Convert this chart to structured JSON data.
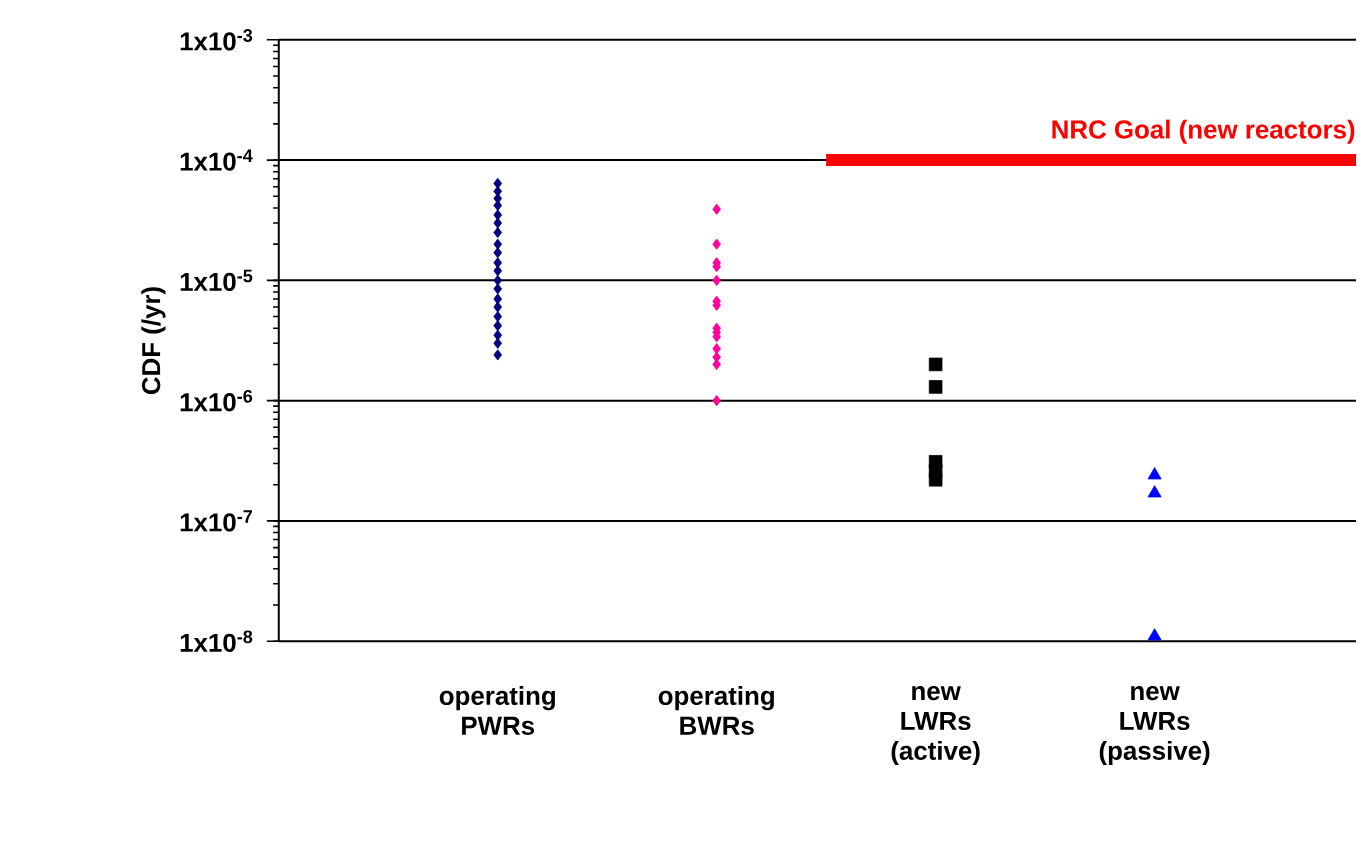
{
  "chart_data": {
    "type": "scatter",
    "ylabel": "CDF (/yr)",
    "log": "y",
    "grid": "y",
    "categories": [
      "operating PWRs",
      "operating BWRs",
      "new LWRs (active)",
      "new LWRs (passive)"
    ],
    "ylim": [
      1e-08,
      0.001
    ],
    "yticks": [
      {
        "value": 1e-08,
        "label": "1x10$^{-8}$"
      },
      {
        "value": 1e-07,
        "label": "1x10$^{-7}$"
      },
      {
        "value": 1e-06,
        "label": "1x10$^{-6}$"
      },
      {
        "value": 1e-05,
        "label": "1x10$^{-5}$"
      },
      {
        "value": 0.0001,
        "label": "1x10$^{-4}$"
      },
      {
        "value": 0.001,
        "label": "1x10$^{-3}$"
      }
    ],
    "series": [
      {
        "color": "#000080",
        "marker": "diamond",
        "x": [
          "operating PWRs",
          "operating PWRs",
          "operating PWRs",
          "operating PWRs",
          "operating PWRs",
          "operating PWRs",
          "operating PWRs",
          "operating PWRs",
          "operating PWRs",
          "operating PWRs",
          "operating PWRs",
          "operating PWRs",
          "operating PWRs",
          "operating PWRs",
          "operating PWRs",
          "operating PWRs",
          "operating PWRs",
          "operating PWRs",
          "operating PWRs",
          "operating PWRs"
        ],
        "values": [
          6.4e-05,
          5.5e-05,
          4.8e-05,
          4.2e-05,
          3.5e-05,
          3e-05,
          2.5e-05,
          2e-05,
          1.7e-05,
          1.4e-05,
          1.2e-05,
          1e-05,
          8.5e-06,
          7e-06,
          6e-06,
          5e-06,
          4.2e-06,
          3.5e-06,
          3e-06,
          2.4e-06
        ]
      },
      {
        "color": "#ff0099",
        "marker": "diamond",
        "x": [
          "operating BWRs",
          "operating BWRs",
          "operating BWRs",
          "operating BWRs",
          "operating BWRs",
          "operating BWRs",
          "operating BWRs",
          "operating BWRs",
          "operating BWRs",
          "operating BWRs",
          "operating BWRs",
          "operating BWRs",
          "operating BWRs",
          "operating BWRs"
        ],
        "values": [
          3.9e-05,
          2e-05,
          1.4e-05,
          1.3e-05,
          1e-05,
          6.7e-06,
          6.2e-06,
          4e-06,
          3.7e-06,
          3.4e-06,
          2.7e-06,
          2.3e-06,
          2e-06,
          1e-06
        ]
      },
      {
        "color": "#000000",
        "marker": "square",
        "x": [
          "new LWRs (active)",
          "new LWRs (active)",
          "new LWRs (active)",
          "new LWRs (active)",
          "new LWRs (active)"
        ],
        "values": [
          2e-06,
          1.3e-06,
          3.1e-07,
          2.6e-07,
          2.2e-07
        ]
      },
      {
        "color": "#0000ff",
        "marker": "triangle",
        "x": [
          "new LWRs (passive)",
          "new LWRs (passive)",
          "new LWRs (passive)"
        ],
        "values": [
          2.4e-07,
          1.7e-07,
          1.1e-08
        ]
      }
    ],
    "ref_lines": [
      {
        "axis": "y",
        "value": 0.0001,
        "label": "NRC Goal (new reactors)",
        "color": "#ff0000"
      }
    ]
  }
}
